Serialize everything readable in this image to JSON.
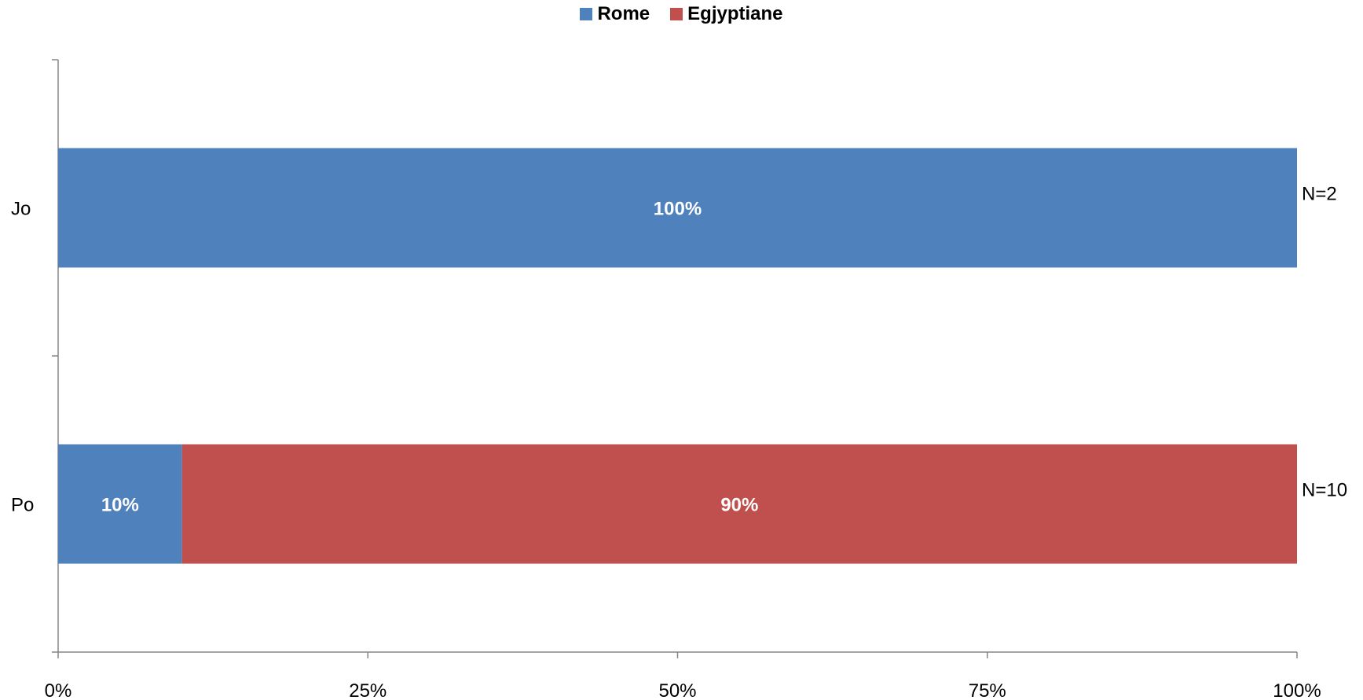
{
  "chart_data": {
    "type": "bar",
    "orientation": "horizontal",
    "stacked": true,
    "categories": [
      "Jo",
      "Po"
    ],
    "series": [
      {
        "name": "Rome",
        "color": "#4F81BD",
        "values": [
          100,
          10
        ],
        "labels": [
          "100%",
          "10%"
        ]
      },
      {
        "name": "Egjyptiane",
        "color": "#C0504D",
        "values": [
          0,
          90
        ],
        "labels": [
          "",
          "90%"
        ]
      }
    ],
    "annotations": [
      "N=2",
      "N=10"
    ],
    "xlim": [
      0,
      100
    ],
    "xticks": [
      "0%",
      "25%",
      "50%",
      "75%",
      "100%"
    ],
    "legend_position": "top",
    "grid": false
  }
}
